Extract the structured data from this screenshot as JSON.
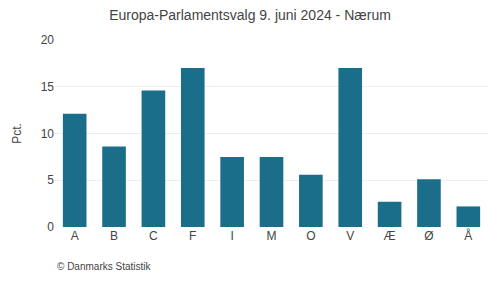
{
  "chart_data": {
    "type": "bar",
    "title": "Europa-Parlamentsvalg 9. juni 2024 - Nærum",
    "categories": [
      "A",
      "B",
      "C",
      "F",
      "I",
      "M",
      "O",
      "V",
      "Æ",
      "Ø",
      "Å"
    ],
    "values": [
      12.1,
      8.6,
      14.6,
      17.0,
      7.5,
      7.5,
      5.6,
      17.0,
      2.7,
      5.1,
      2.2
    ],
    "color": "#1a6e8a",
    "ylabel": "Pct.",
    "annotations": [
      "© Danmarks Statistik"
    ],
    "ylim": [
      0,
      20
    ],
    "yticks": [
      0,
      5,
      10,
      15,
      20
    ],
    "grid": true
  }
}
